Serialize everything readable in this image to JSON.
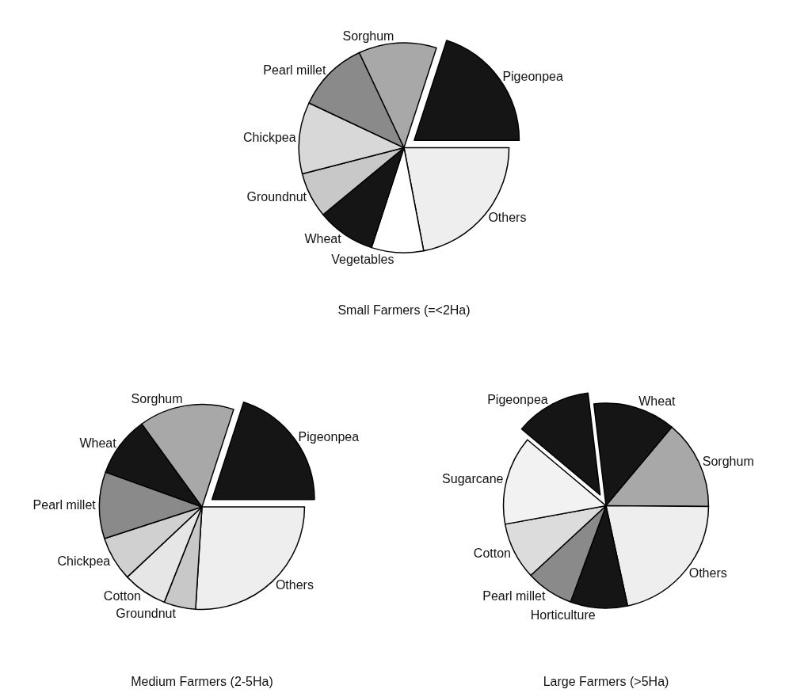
{
  "chart_data": [
    {
      "type": "pie",
      "title": "Small Farmers (=<2Ha)",
      "categories": [
        "Pigeonpea",
        "Others",
        "Vegetables",
        "Wheat",
        "Groundnut",
        "Chickpea",
        "Pearl millet",
        "Sorghum"
      ],
      "values": [
        20,
        22,
        8,
        9,
        7,
        11,
        11,
        12
      ],
      "colors": [
        "#151515",
        "#eeeeee",
        "#ffffff",
        "#151515",
        "#c8c8c8",
        "#d8d8d8",
        "#8a8a8a",
        "#a8a8a8"
      ],
      "legend": false
    },
    {
      "type": "pie",
      "title": "Medium Farmers (2-5Ha)",
      "categories": [
        "Pigeonpea",
        "Others",
        "Groundnut",
        "Cotton",
        "Chickpea",
        "Pearl millet",
        "Wheat",
        "Sorghum"
      ],
      "values": [
        20,
        26,
        5,
        7,
        7,
        10.5,
        9.5,
        15
      ],
      "colors": [
        "#151515",
        "#eeeeee",
        "#c8c8c8",
        "#e6e6e6",
        "#d0d0d0",
        "#8a8a8a",
        "#151515",
        "#a8a8a8"
      ],
      "legend": false
    },
    {
      "type": "pie",
      "title": "Large Farmers (>5Ha)",
      "categories": [
        "Pigeonpea",
        "Wheat",
        "Sorghum",
        "Others",
        "Horticulture",
        "Pearl millet",
        "Cotton",
        "Sugarcane"
      ],
      "values": [
        12,
        13,
        14,
        21.5,
        9,
        7.5,
        9,
        14
      ],
      "colors": [
        "#151515",
        "#151515",
        "#a8a8a8",
        "#eeeeee",
        "#151515",
        "#8a8a8a",
        "#dcdcdc",
        "#f2f2f2"
      ],
      "legend": false
    }
  ]
}
